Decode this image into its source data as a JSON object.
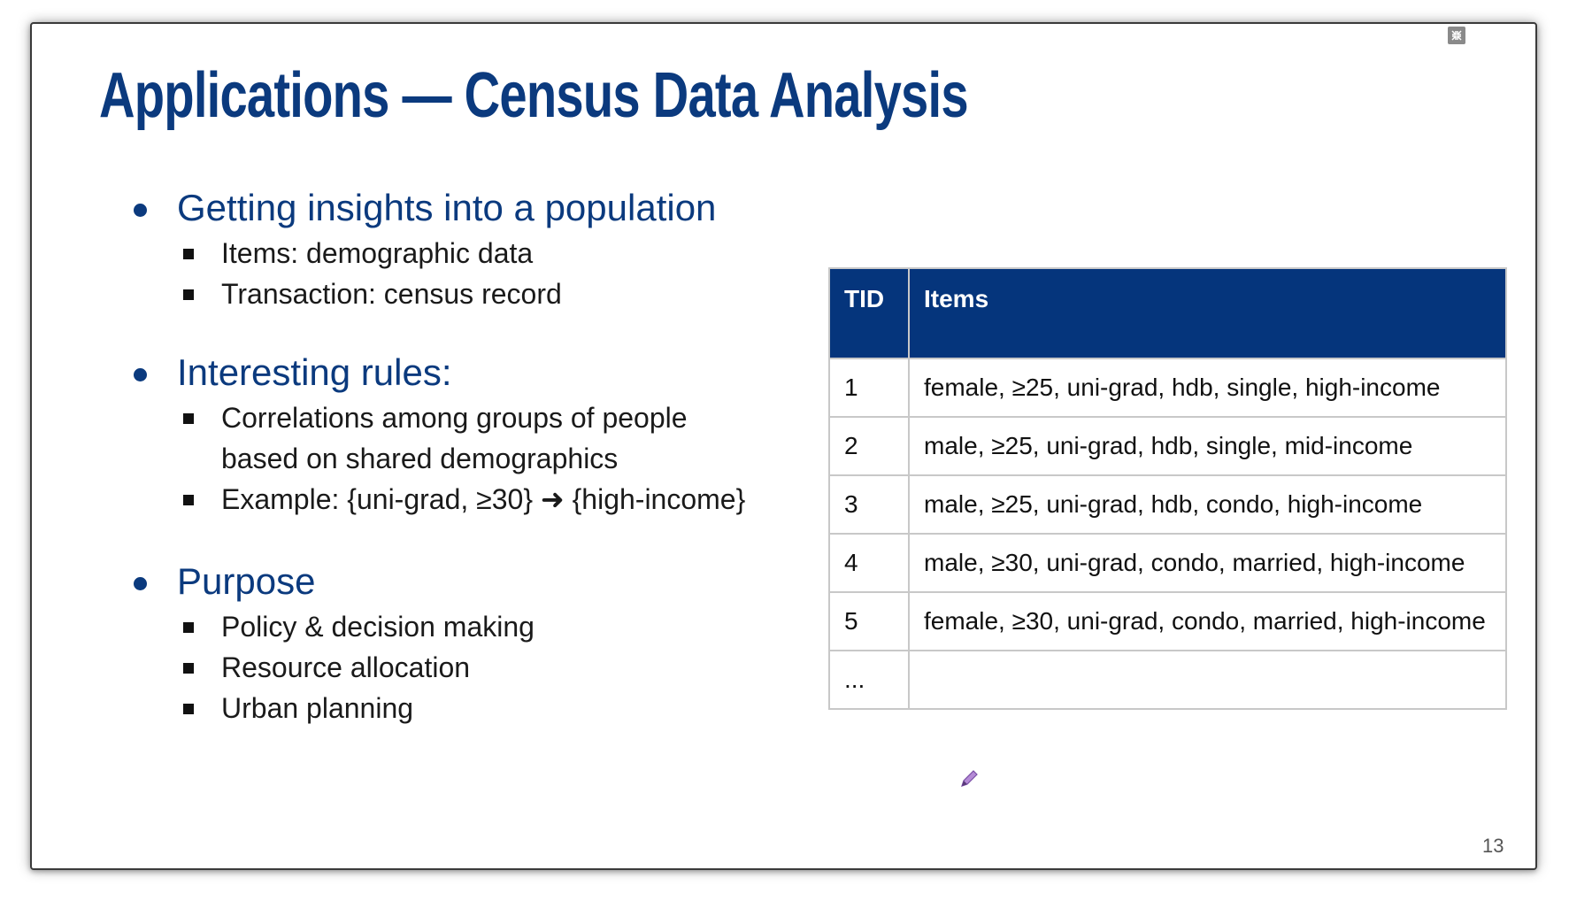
{
  "slide": {
    "title": "Applications — Census Data Analysis",
    "page_number": "13"
  },
  "bullets": [
    {
      "heading": "Getting insights into a population",
      "items": [
        "Items: demographic data",
        "Transaction: census record"
      ]
    },
    {
      "heading": "Interesting rules:",
      "items": [
        "Correlations among groups of people",
        "based on shared demographics",
        "Example: {uni-grad, ≥30} ➜ {high-income}"
      ]
    },
    {
      "heading": "Purpose",
      "items": [
        "Policy & decision making",
        "Resource allocation",
        "Urban planning"
      ]
    }
  ],
  "table": {
    "headers": [
      "TID",
      "Items"
    ],
    "rows": [
      [
        "1",
        "female, ≥25, uni-grad, hdb, single, high-income"
      ],
      [
        "2",
        "male, ≥25, uni-grad, hdb, single, mid-income"
      ],
      [
        "3",
        "male, ≥25, uni-grad, hdb, condo, high-income"
      ],
      [
        "4",
        "male, ≥30, uni-grad, condo, married, high-income"
      ],
      [
        "5",
        "female, ≥30, uni-grad, condo, married, high-income"
      ],
      [
        "...",
        ""
      ]
    ]
  },
  "icons": {
    "collapse": "collapse-icon",
    "pen": "pen-icon"
  },
  "colors": {
    "title": "#0b3a7e",
    "table_header": "#05357c"
  }
}
